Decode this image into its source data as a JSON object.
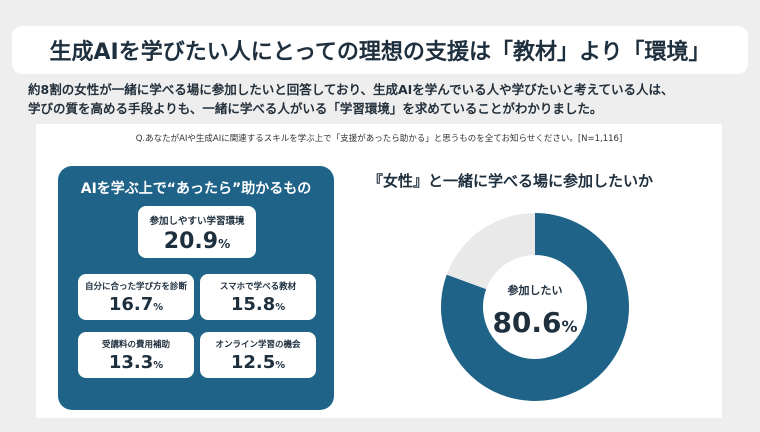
{
  "header": {
    "title": "生成AIを学びたい人にとっての理想の支援は「教材」より「環境」",
    "lead_line1": "約8割の女性が一緒に学べる場に参加したいと回答しており、生成AIを学んでいる人や学びたいと考えている人は、",
    "lead_line2": "学びの質を高める手段よりも、一緒に学べる人がいる「学習環境」を求めていることがわかりました。"
  },
  "question": "Q.あなたがAIや生成AIに関連するスキルを学ぶ上で「支援があったら助かる」と思うものを全てお知らせください。[N=1,116]",
  "colors": {
    "accent": "#1f6388",
    "pie_rest": "#e9e9e9",
    "text": "#1e2f3e"
  },
  "chart_data": [
    {
      "type": "table",
      "title": "AIを学ぶ上で“あったら”助かるもの",
      "items": [
        {
          "label": "参加しやすい学習環境",
          "value": 20.9,
          "value_text": "20.9",
          "unit": "%"
        },
        {
          "label": "自分に合った学び方を診断",
          "value": 16.7,
          "value_text": "16.7",
          "unit": "%"
        },
        {
          "label": "スマホで学べる教材",
          "value": 15.8,
          "value_text": "15.8",
          "unit": "%"
        },
        {
          "label": "受講料の費用補助",
          "value": 13.3,
          "value_text": "13.3",
          "unit": "%"
        },
        {
          "label": "オンライン学習の機会",
          "value": 12.5,
          "value_text": "12.5",
          "unit": "%"
        }
      ]
    },
    {
      "type": "pie",
      "title": "『女性』と一緒に学べる場に参加したいか",
      "slices": [
        {
          "label": "参加したい",
          "value": 80.6,
          "value_text": "80.6",
          "unit": "%",
          "color": "#1f6388"
        },
        {
          "label": "",
          "value": 19.4,
          "color": "#e9e9e9"
        }
      ]
    }
  ]
}
